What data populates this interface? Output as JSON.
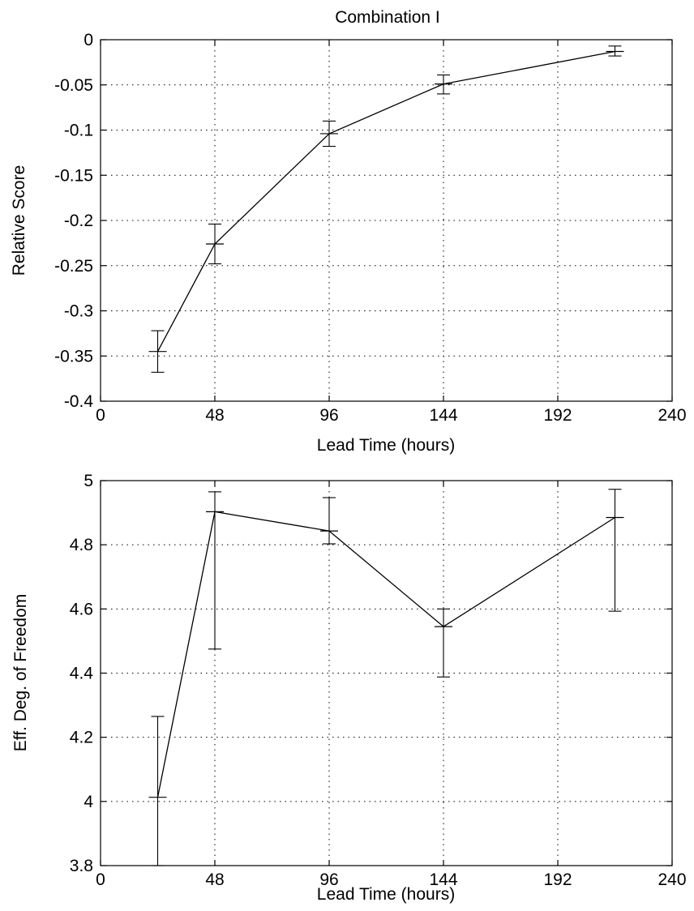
{
  "chart_data": [
    {
      "type": "line",
      "title": "Combination I",
      "xlabel": "Lead Time (hours)",
      "ylabel": "Relative Score",
      "xlim": [
        0,
        240
      ],
      "ylim": [
        -0.4,
        0
      ],
      "xticks": [
        0,
        48,
        96,
        144,
        192,
        240
      ],
      "xtick_labels": [
        "0",
        "48",
        "96",
        "144",
        "192",
        "240"
      ],
      "yticks": [
        -0.4,
        -0.35,
        -0.3,
        -0.25,
        -0.2,
        -0.15,
        -0.1,
        -0.05,
        0
      ],
      "ytick_labels": [
        "-0.4",
        "-0.35",
        "-0.3",
        "-0.25",
        "-0.2",
        "-0.15",
        "-0.1",
        "-0.05",
        "0"
      ],
      "grid": true,
      "series": [
        {
          "x": [
            24,
            48,
            96,
            144,
            216
          ],
          "y": [
            -0.345,
            -0.226,
            -0.104,
            -0.049,
            -0.013
          ],
          "err_low": [
            -0.368,
            -0.248,
            -0.118,
            -0.06,
            -0.018
          ],
          "err_high": [
            -0.322,
            -0.204,
            -0.09,
            -0.039,
            -0.007
          ]
        }
      ]
    },
    {
      "type": "line",
      "title": "",
      "xlabel": "Lead Time (hours)",
      "ylabel": "Eff. Deg. of Freedom",
      "xlim": [
        0,
        240
      ],
      "ylim": [
        3.8,
        5
      ],
      "xticks": [
        0,
        48,
        96,
        144,
        192,
        240
      ],
      "xtick_labels": [
        "0",
        "48",
        "96",
        "144",
        "192",
        "240"
      ],
      "yticks": [
        3.8,
        4,
        4.2,
        4.4,
        4.6,
        4.8,
        5
      ],
      "ytick_labels": [
        "3.8",
        "4",
        "4.2",
        "4.4",
        "4.6",
        "4.8",
        "5"
      ],
      "grid": true,
      "series": [
        {
          "x": [
            24,
            48,
            96,
            144,
            216
          ],
          "y": [
            4.013,
            4.903,
            4.843,
            4.545,
            4.885
          ],
          "err_low": [
            3.8,
            4.475,
            4.803,
            4.388,
            4.593
          ],
          "err_high": [
            4.265,
            4.965,
            4.947,
            4.6,
            4.973
          ]
        }
      ]
    }
  ]
}
